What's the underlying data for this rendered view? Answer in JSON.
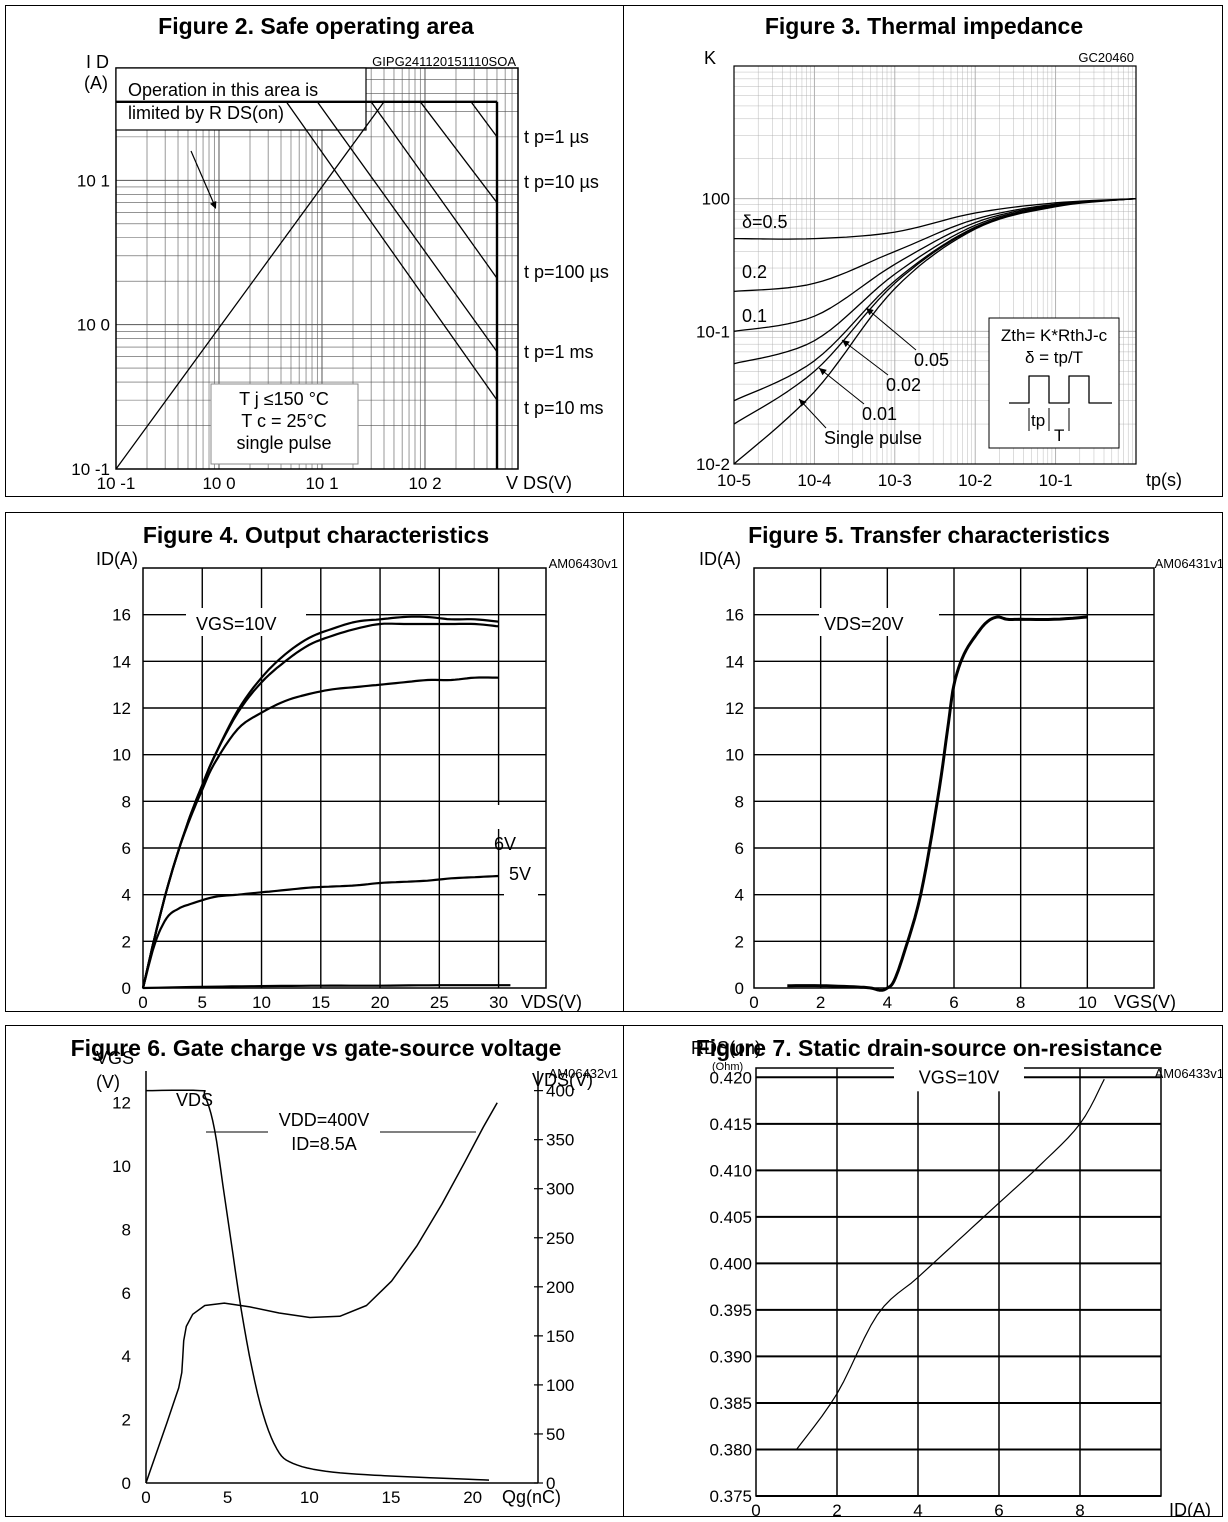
{
  "chart_data": [
    {
      "id": "fig2",
      "type": "line",
      "title": "Figure 2. Safe operating area",
      "code": "GIPG241120151110SOA",
      "ylabel": "I D",
      "yunit": "(A)",
      "xlabel": "V DS(V)",
      "xscale": "log",
      "yscale": "log",
      "xlim": [
        0.1,
        800
      ],
      "ylim": [
        0.1,
        60
      ],
      "x_ticks": [
        "10 -1",
        "10 0",
        "10 1",
        "10 2"
      ],
      "y_ticks": [
        "10 -1",
        "10 0",
        "10 1"
      ],
      "limit_box": [
        "Operation in this area is",
        "limited by R DS(on)"
      ],
      "conditions": [
        "T j ≤150 °C",
        "T c = 25°C",
        "single pulse"
      ],
      "series": [
        {
          "name": "RDS(on) limit",
          "x": [
            0.1,
            40
          ],
          "y": [
            0.1,
            35
          ]
        },
        {
          "name": "t p=1 µs",
          "x": [
            280,
            500
          ],
          "y": [
            35,
            20
          ]
        },
        {
          "name": "t p=10 µs",
          "x": [
            90,
            500
          ],
          "y": [
            35,
            7
          ]
        },
        {
          "name": "t p=100 µs",
          "x": [
            30,
            500
          ],
          "y": [
            35,
            2.1
          ]
        },
        {
          "name": "t p=1 ms",
          "x": [
            9,
            500
          ],
          "y": [
            35,
            0.65
          ]
        },
        {
          "name": "t p=10 ms",
          "x": [
            4.5,
            500
          ],
          "y": [
            35,
            0.3
          ]
        },
        {
          "name": "current limit",
          "x": [
            0.1,
            500
          ],
          "y": [
            35,
            35
          ]
        },
        {
          "name": "voltage limit",
          "x": [
            500,
            500
          ],
          "y": [
            0.1,
            35
          ]
        }
      ]
    },
    {
      "id": "fig3",
      "type": "line",
      "title": "Figure 3. Thermal impedance",
      "code": "GC20460",
      "ylabel": "K",
      "xlabel": "tp(s)",
      "xscale": "log",
      "yscale": "log",
      "xlim": [
        1e-05,
        1
      ],
      "ylim": [
        0.01,
        10
      ],
      "x_ticks": [
        "10-5",
        "10-4",
        "10-3",
        "10-2",
        "10-1"
      ],
      "y_ticks": [
        "10-2",
        "10-1",
        "100"
      ],
      "formula": [
        "Zth= K*RthJ-c",
        "δ = tp/T"
      ],
      "pulse_labels": [
        "tp",
        "T"
      ],
      "series": [
        {
          "name": "δ=0.5",
          "x": [
            1e-05,
            0.0001,
            0.001,
            0.01,
            0.1,
            1
          ],
          "y": [
            0.5,
            0.5,
            0.56,
            0.78,
            0.93,
            1.0
          ]
        },
        {
          "name": "0.2",
          "x": [
            1e-05,
            0.0001,
            0.001,
            0.01,
            0.1,
            1
          ],
          "y": [
            0.2,
            0.23,
            0.4,
            0.7,
            0.91,
            1.0
          ]
        },
        {
          "name": "0.1",
          "x": [
            1e-05,
            0.0001,
            0.001,
            0.01,
            0.1,
            1
          ],
          "y": [
            0.1,
            0.13,
            0.32,
            0.66,
            0.9,
            1.0
          ]
        },
        {
          "name": "0.05",
          "x": [
            1e-05,
            0.0001,
            0.001,
            0.01,
            0.1,
            1
          ],
          "y": [
            0.057,
            0.085,
            0.27,
            0.63,
            0.89,
            1.0
          ]
        },
        {
          "name": "0.02",
          "x": [
            1e-05,
            0.0001,
            0.001,
            0.01,
            0.1,
            1
          ],
          "y": [
            0.03,
            0.06,
            0.24,
            0.61,
            0.88,
            1.0
          ]
        },
        {
          "name": "0.01",
          "x": [
            1e-05,
            0.0001,
            0.001,
            0.01,
            0.1,
            1
          ],
          "y": [
            0.02,
            0.05,
            0.23,
            0.6,
            0.88,
            1.0
          ]
        },
        {
          "name": "Single pulse",
          "x": [
            1e-05,
            0.0001,
            0.001,
            0.01,
            0.1,
            1
          ],
          "y": [
            0.01,
            0.035,
            0.21,
            0.59,
            0.87,
            1.0
          ]
        }
      ]
    },
    {
      "id": "fig4",
      "type": "line",
      "title": "Figure 4. Output characteristics",
      "code": "AM06430v1",
      "ylabel": "ID(A)",
      "xlabel": "VDS(V)",
      "xlim": [
        0,
        34
      ],
      "ylim": [
        0,
        18
      ],
      "x_ticks": [
        0,
        5,
        10,
        15,
        20,
        25,
        30
      ],
      "y_ticks": [
        0,
        2,
        4,
        6,
        8,
        10,
        12,
        14,
        16
      ],
      "annotation": "VGS=10V",
      "series": [
        {
          "name": "VGS=10V",
          "x": [
            0,
            1,
            2,
            3,
            4,
            5,
            6,
            8,
            10,
            12,
            14,
            16,
            18,
            20,
            22,
            24,
            26,
            28,
            30
          ],
          "y": [
            0,
            2.2,
            4.2,
            5.9,
            7.4,
            8.7,
            9.9,
            11.9,
            13.3,
            14.3,
            15.0,
            15.4,
            15.7,
            15.8,
            15.9,
            15.9,
            15.8,
            15.8,
            15.7
          ]
        },
        {
          "name": "",
          "x": [
            0,
            1,
            2,
            3,
            4,
            5,
            6,
            8,
            10,
            12,
            14,
            16,
            18,
            20,
            22,
            24,
            26,
            28,
            30
          ],
          "y": [
            0,
            2.2,
            4.2,
            5.9,
            7.4,
            8.7,
            9.9,
            11.8,
            13.1,
            14.0,
            14.7,
            15.1,
            15.4,
            15.6,
            15.6,
            15.6,
            15.6,
            15.6,
            15.5
          ]
        },
        {
          "name": "6V",
          "x": [
            0,
            1,
            2,
            3,
            4,
            5,
            6,
            8,
            10,
            12,
            14,
            16,
            18,
            20,
            22,
            24,
            26,
            28,
            30
          ],
          "y": [
            0,
            2.2,
            4.2,
            5.9,
            7.3,
            8.5,
            9.6,
            11.1,
            11.8,
            12.3,
            12.6,
            12.8,
            12.9,
            13.0,
            13.1,
            13.2,
            13.2,
            13.3,
            13.3
          ]
        },
        {
          "name": "5V",
          "x": [
            0,
            1,
            2,
            3,
            4,
            6,
            8,
            10,
            12,
            14,
            16,
            18,
            20,
            22,
            24,
            26,
            28,
            30
          ],
          "y": [
            0,
            1.9,
            3.0,
            3.4,
            3.6,
            3.9,
            4.0,
            4.1,
            4.2,
            4.3,
            4.35,
            4.4,
            4.5,
            4.55,
            4.6,
            4.7,
            4.75,
            4.8
          ]
        },
        {
          "name": "",
          "x": [
            0,
            5,
            10,
            15,
            20,
            25,
            31
          ],
          "y": [
            0,
            0.05,
            0.08,
            0.1,
            0.1,
            0.12,
            0.12
          ]
        }
      ],
      "series_labels": [
        "6V",
        "5V"
      ]
    },
    {
      "id": "fig5",
      "type": "line",
      "title": "Figure 5. Transfer characteristics",
      "code": "AM06431v1",
      "ylabel": "ID(A)",
      "xlabel": "VGS(V)",
      "xlim": [
        0,
        12
      ],
      "ylim": [
        0,
        18
      ],
      "x_ticks": [
        0,
        2,
        4,
        6,
        8,
        10
      ],
      "y_ticks": [
        0,
        2,
        4,
        6,
        8,
        10,
        12,
        14,
        16
      ],
      "annotation": "VDS=20V",
      "series": [
        {
          "name": "VDS=20V",
          "x": [
            1,
            2,
            3,
            3.5,
            3.8,
            4.0,
            4.2,
            4.5,
            5.0,
            5.5,
            5.8,
            6.0,
            6.3,
            6.7,
            7.0,
            7.3,
            7.6,
            8,
            9,
            10
          ],
          "y": [
            0.1,
            0.1,
            0.05,
            0.0,
            -0.1,
            0.0,
            0.3,
            1.5,
            4.0,
            8.0,
            11.0,
            13.0,
            14.3,
            15.2,
            15.7,
            15.9,
            15.8,
            15.8,
            15.8,
            15.9
          ]
        }
      ]
    },
    {
      "id": "fig6",
      "type": "line",
      "title": "Figure 6. Gate charge vs gate-source voltage",
      "code": "AM06432v1",
      "ylabel": "VGS",
      "yunit": "(V)",
      "y2label": "VDS(V)",
      "xlabel": "Qg(nC)",
      "xlim": [
        0,
        24
      ],
      "ylim": [
        0,
        13
      ],
      "y2lim": [
        0,
        420
      ],
      "x_ticks": [
        0,
        5,
        10,
        15,
        20
      ],
      "y_ticks": [
        0,
        2,
        4,
        6,
        8,
        10,
        12
      ],
      "y2_ticks": [
        0,
        50,
        100,
        150,
        200,
        250,
        300,
        350,
        400
      ],
      "annotations": [
        "VDS",
        "VDD=400V",
        "ID=8.5A"
      ],
      "series": [
        {
          "name": "VGS",
          "axis": "left",
          "x": [
            0,
            2,
            3.6,
            13.5,
            21.5
          ],
          "y": [
            0,
            3.0,
            5.6,
            5.6,
            12.0
          ]
        },
        {
          "name": "VDS",
          "axis": "right",
          "x": [
            0,
            3.3,
            3.6,
            4.2,
            5,
            6,
            7,
            8,
            9,
            11,
            14,
            18,
            21
          ],
          "y": [
            400,
            400,
            395,
            360,
            270,
            160,
            80,
            35,
            20,
            12,
            8,
            5,
            3
          ]
        }
      ]
    },
    {
      "id": "fig7",
      "type": "line",
      "title": "Figure 7. Static drain-source on-resistance",
      "code": "AM06433v1",
      "ylabel": "RDS(on)",
      "yunit": "(Ohm)",
      "xlabel": "ID(A)",
      "xlim": [
        0,
        10
      ],
      "ylim": [
        0.375,
        0.421
      ],
      "x_ticks": [
        0,
        2,
        4,
        6,
        8
      ],
      "y_ticks": [
        "0.375",
        "0.380",
        "0.385",
        "0.390",
        "0.395",
        "0.400",
        "0.405",
        "0.410",
        "0.415",
        "0.420"
      ],
      "annotation": "VGS=10V",
      "series": [
        {
          "name": "VGS=10V",
          "x": [
            1,
            2,
            3,
            4,
            5,
            6,
            7,
            8,
            8.6
          ],
          "y": [
            0.38,
            0.386,
            0.3945,
            0.3985,
            0.4025,
            0.4065,
            0.4105,
            0.415,
            0.4198
          ]
        }
      ]
    }
  ]
}
